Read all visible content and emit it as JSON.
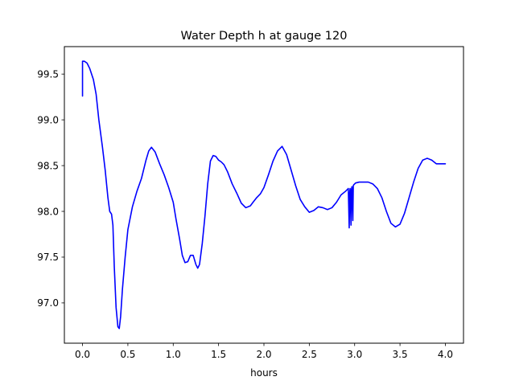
{
  "chart_data": {
    "type": "line",
    "title": "Water Depth h at gauge 120",
    "xlabel": "hours",
    "ylabel": "",
    "xlim": [
      -0.2,
      4.2
    ],
    "ylim": [
      96.56,
      99.8
    ],
    "x_ticks": [
      0.0,
      0.5,
      1.0,
      1.5,
      2.0,
      2.5,
      3.0,
      3.5,
      4.0
    ],
    "x_tick_labels": [
      "0.0",
      "0.5",
      "1.0",
      "1.5",
      "2.0",
      "2.5",
      "3.0",
      "3.5",
      "4.0"
    ],
    "y_ticks": [
      97.0,
      97.5,
      98.0,
      98.5,
      99.0,
      99.5
    ],
    "y_tick_labels": [
      "97.0",
      "97.5",
      "98.0",
      "98.5",
      "99.0",
      "99.5"
    ],
    "grid": false,
    "legend": "none",
    "series": [
      {
        "color": "#0000ff",
        "x": [
          0.0,
          0.0,
          0.02,
          0.05,
          0.08,
          0.12,
          0.15,
          0.18,
          0.22,
          0.25,
          0.28,
          0.3,
          0.32,
          0.335,
          0.35,
          0.37,
          0.39,
          0.405,
          0.42,
          0.44,
          0.47,
          0.5,
          0.55,
          0.6,
          0.65,
          0.7,
          0.73,
          0.76,
          0.8,
          0.85,
          0.9,
          0.95,
          1.0,
          1.03,
          1.07,
          1.1,
          1.13,
          1.16,
          1.19,
          1.22,
          1.25,
          1.27,
          1.29,
          1.32,
          1.35,
          1.38,
          1.41,
          1.44,
          1.47,
          1.5,
          1.53,
          1.56,
          1.6,
          1.65,
          1.7,
          1.75,
          1.8,
          1.85,
          1.88,
          1.92,
          1.96,
          2.0,
          2.05,
          2.1,
          2.15,
          2.2,
          2.25,
          2.3,
          2.35,
          2.4,
          2.45,
          2.5,
          2.55,
          2.6,
          2.65,
          2.7,
          2.75,
          2.8,
          2.85,
          2.9,
          2.93,
          2.94,
          2.945,
          2.95,
          2.96,
          2.965,
          2.97,
          2.98,
          2.985,
          2.99,
          3.0,
          3.01,
          3.05,
          3.1,
          3.15,
          3.2,
          3.25,
          3.3,
          3.35,
          3.4,
          3.45,
          3.5,
          3.55,
          3.6,
          3.65,
          3.7,
          3.75,
          3.8,
          3.85,
          3.9,
          3.95,
          4.0
        ],
        "y": [
          99.26,
          99.64,
          99.64,
          99.62,
          99.56,
          99.44,
          99.28,
          99.0,
          98.7,
          98.45,
          98.15,
          98.0,
          97.97,
          97.85,
          97.4,
          96.95,
          96.74,
          96.72,
          96.85,
          97.15,
          97.5,
          97.8,
          98.05,
          98.22,
          98.36,
          98.56,
          98.66,
          98.7,
          98.65,
          98.52,
          98.4,
          98.26,
          98.1,
          97.92,
          97.7,
          97.52,
          97.44,
          97.45,
          97.52,
          97.52,
          97.42,
          97.38,
          97.42,
          97.65,
          97.95,
          98.3,
          98.55,
          98.61,
          98.6,
          98.56,
          98.54,
          98.51,
          98.43,
          98.3,
          98.2,
          98.09,
          98.04,
          98.06,
          98.1,
          98.15,
          98.19,
          98.26,
          98.4,
          98.55,
          98.66,
          98.71,
          98.62,
          98.45,
          98.28,
          98.13,
          98.05,
          97.99,
          98.01,
          98.05,
          98.04,
          98.02,
          98.04,
          98.1,
          98.18,
          98.22,
          98.25,
          97.82,
          98.2,
          98.25,
          97.85,
          98.24,
          98.27,
          97.9,
          98.28,
          98.29,
          98.3,
          98.31,
          98.32,
          98.32,
          98.32,
          98.3,
          98.25,
          98.15,
          98.0,
          97.87,
          97.83,
          97.86,
          97.98,
          98.15,
          98.32,
          98.47,
          98.56,
          98.58,
          98.56,
          98.52,
          98.52,
          98.52
        ]
      }
    ]
  }
}
